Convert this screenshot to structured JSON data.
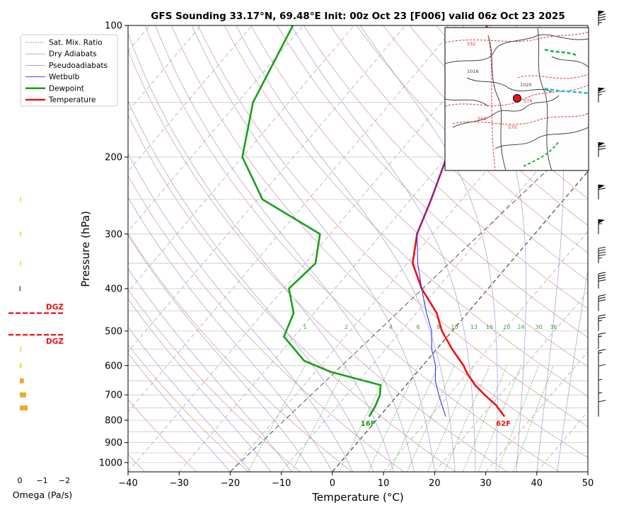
{
  "chart_data": {
    "type": "line",
    "title": "GFS Sounding 33.17°N, 69.48°E Init: 00z Oct 23 [F006] valid 06z Oct 23 2025",
    "xlabel": "Temperature (°C)",
    "ylabel": "Pressure (hPa)",
    "xlim": [
      -40,
      50
    ],
    "ylim": [
      1050,
      100
    ],
    "y_scale": "log",
    "skewed": true,
    "grid": true,
    "legend_position": "upper-left",
    "x_ticks": [
      "−40",
      "−30",
      "−20",
      "−10",
      "0",
      "10",
      "20",
      "30",
      "40",
      "50"
    ],
    "y_ticks": [
      "100",
      "200",
      "300",
      "400",
      "500",
      "600",
      "700",
      "800",
      "900",
      "1000"
    ],
    "legend": [
      {
        "label": "Sat. Mix. Ratio",
        "color": "#2ca02c",
        "style": "dotted"
      },
      {
        "label": "Dry Adiabats",
        "color": "#d09a9a",
        "style": "solid"
      },
      {
        "label": "Pseudoadiabats",
        "color": "#9a9ad0",
        "style": "solid"
      },
      {
        "label": "Wetbulb",
        "color": "#3333ff",
        "style": "solid"
      },
      {
        "label": "Dewpoint",
        "color": "#18a018",
        "style": "solid"
      },
      {
        "label": "Temperature",
        "color": "#ee1111",
        "style": "solid"
      }
    ],
    "mixing_ratio_labels": [
      "1",
      "2",
      "4",
      "6",
      "8",
      "10",
      "13",
      "16",
      "20",
      "24",
      "30",
      "36"
    ],
    "series": [
      {
        "name": "Temperature",
        "color": "#ee1111",
        "points": [
          [
            24.5,
            785
          ],
          [
            21,
            740
          ],
          [
            17,
            700
          ],
          [
            13.5,
            665
          ],
          [
            10,
            625
          ],
          [
            8,
            600
          ],
          [
            3,
            550
          ],
          [
            -2,
            500
          ],
          [
            -6,
            455
          ],
          [
            -13,
            400
          ],
          [
            -19,
            350
          ],
          [
            -23,
            300
          ],
          [
            -26,
            250
          ],
          [
            -30,
            200
          ],
          [
            -35,
            150
          ],
          [
            -40,
            125
          ],
          [
            -44,
            100
          ]
        ]
      },
      {
        "name": "Wetbulb",
        "color": "#3333ff",
        "points": [
          [
            13,
            785
          ],
          [
            11,
            750
          ],
          [
            8,
            700
          ],
          [
            5,
            650
          ],
          [
            2.5,
            600
          ],
          [
            -1,
            550
          ],
          [
            -4,
            500
          ],
          [
            -8,
            455
          ],
          [
            -13,
            400
          ],
          [
            -18,
            350
          ],
          [
            -23,
            300
          ],
          [
            -26,
            250
          ],
          [
            -30,
            200
          ],
          [
            -35,
            150
          ]
        ]
      },
      {
        "name": "Dewpoint",
        "color": "#18a018",
        "points": [
          [
            -2,
            785
          ],
          [
            -2.5,
            745
          ],
          [
            -3.5,
            700
          ],
          [
            -5,
            665
          ],
          [
            -17,
            620
          ],
          [
            -24,
            585
          ],
          [
            -32,
            515
          ],
          [
            -34,
            455
          ],
          [
            -39,
            400
          ],
          [
            -38,
            350
          ],
          [
            -42,
            300
          ],
          [
            -59,
            250
          ],
          [
            -70,
            200
          ],
          [
            -77,
            150
          ],
          [
            -82,
            100
          ]
        ]
      }
    ],
    "annotations": [
      {
        "text": "62F",
        "color": "#ee1111"
      },
      {
        "text": "16F",
        "color": "#18a018"
      },
      {
        "text": "DGZ",
        "color": "#ee1111"
      },
      {
        "text": "DGZ",
        "color": "#ee1111"
      }
    ],
    "omega_panel": {
      "xlabel": "Omega (Pa/s)",
      "x_ticks": [
        "0",
        "−1",
        "−2"
      ],
      "levels": [
        {
          "p": 250,
          "omega": -0.05
        },
        {
          "p": 300,
          "omega": -0.05
        },
        {
          "p": 350,
          "omega": -0.04
        },
        {
          "p": 400,
          "omega": 0.02
        },
        {
          "p": 550,
          "omega": -0.03
        },
        {
          "p": 600,
          "omega": -0.08
        },
        {
          "p": 650,
          "omega": -0.18
        },
        {
          "p": 700,
          "omega": -0.28
        },
        {
          "p": 750,
          "omega": -0.35
        }
      ],
      "dgz": [
        455,
        510
      ]
    },
    "wind_barbs": {
      "levels": [
        100,
        150,
        200,
        250,
        300,
        350,
        400,
        450,
        500,
        550,
        600,
        650,
        700,
        750,
        785
      ],
      "speed_kt": [
        85,
        65,
        70,
        60,
        55,
        45,
        40,
        30,
        25,
        15,
        15,
        10,
        5,
        5,
        10
      ]
    },
    "inset_map": {
      "contour_labels": [
        "552",
        "558",
        "570",
        "576",
        "1016",
        "1020"
      ]
    }
  }
}
